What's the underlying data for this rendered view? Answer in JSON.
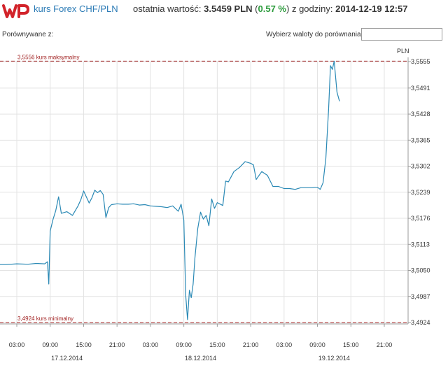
{
  "header": {
    "logo_text": "WP",
    "pair_title": "kurs Forex CHF/PLN",
    "last_value_prefix": "ostatnia wartość:",
    "last_value": "3.5459 PLN",
    "change_open": "(",
    "change": "0.57 %",
    "change_close": ")",
    "time_prefix": "z godziny:",
    "timestamp": "2014-12-19 12:57"
  },
  "toolbar": {
    "compare_label": "Porównywane z:",
    "currency_label": "Wybierz waloty do porównania",
    "currency_value": ""
  },
  "colors": {
    "line": "#2a89b5",
    "reference": "#a02020",
    "grid": "#e3e3e3",
    "brand": "#d2232a"
  },
  "chart_data": {
    "type": "line",
    "unit_label": "PLN",
    "y_ticks": [
      "3,5555",
      "3,5491",
      "3,5428",
      "3,5365",
      "3,5302",
      "3,5239",
      "3,5176",
      "3,5113",
      "3,5050",
      "3,4987",
      "3,4924"
    ],
    "y_tick_values": [
      3.5555,
      3.5491,
      3.5428,
      3.5365,
      3.5302,
      3.5239,
      3.5176,
      3.5113,
      3.505,
      3.4987,
      3.4924
    ],
    "ylim": [
      3.4924,
      3.5555
    ],
    "x_tick_labels": [
      "03:00",
      "09:00",
      "15:00",
      "21:00",
      "03:00",
      "09:00",
      "15:00",
      "21:00",
      "03:00",
      "09:00",
      "15:00",
      "21:00"
    ],
    "x_tick_times": [
      "2014-12-17 03:00",
      "2014-12-17 09:00",
      "2014-12-17 15:00",
      "2014-12-17 21:00",
      "2014-12-18 03:00",
      "2014-12-18 09:00",
      "2014-12-18 15:00",
      "2014-12-18 21:00",
      "2014-12-19 03:00",
      "2014-12-19 09:00",
      "2014-12-19 15:00",
      "2014-12-19 21:00"
    ],
    "date_labels": [
      "17.12.2014",
      "18.12.2014",
      "19.12.2014"
    ],
    "date_label_times": [
      "2014-12-17 12:00",
      "2014-12-18 12:00",
      "2014-12-19 12:00"
    ],
    "reference_lines": [
      {
        "label": "3,5556 kurs maksymalny",
        "value": 3.5556
      },
      {
        "label": "3,4924 kurs minimalny",
        "value": 3.4924
      }
    ],
    "grid": true,
    "series": [
      {
        "x": [
          "2014-12-16 22:00",
          "2014-12-17 01:00",
          "2014-12-17 03:00",
          "2014-12-17 05:00",
          "2014-12-17 06:30",
          "2014-12-17 08:00",
          "2014-12-17 08:30",
          "2014-12-17 08:45",
          "2014-12-17 09:00",
          "2014-12-17 09:30",
          "2014-12-17 10:00",
          "2014-12-17 10:30",
          "2014-12-17 11:00",
          "2014-12-17 12:00",
          "2014-12-17 13:00",
          "2014-12-17 14:00",
          "2014-12-17 14:30",
          "2014-12-17 15:00",
          "2014-12-17 16:00",
          "2014-12-17 16:30",
          "2014-12-17 17:00",
          "2014-12-17 17:30",
          "2014-12-17 18:00",
          "2014-12-17 18:30",
          "2014-12-17 19:00",
          "2014-12-17 19:30",
          "2014-12-17 20:00",
          "2014-12-17 21:00",
          "2014-12-17 22:00",
          "2014-12-17 23:00",
          "2014-12-18 00:00",
          "2014-12-18 01:00",
          "2014-12-18 02:00",
          "2014-12-18 03:00",
          "2014-12-18 04:00",
          "2014-12-18 05:00",
          "2014-12-18 06:00",
          "2014-12-18 07:00",
          "2014-12-18 08:00",
          "2014-12-18 08:30",
          "2014-12-18 09:00",
          "2014-12-18 09:20",
          "2014-12-18 09:40",
          "2014-12-18 10:00",
          "2014-12-18 10:20",
          "2014-12-18 10:40",
          "2014-12-18 11:00",
          "2014-12-18 11:30",
          "2014-12-18 12:00",
          "2014-12-18 12:30",
          "2014-12-18 13:00",
          "2014-12-18 13:30",
          "2014-12-18 14:00",
          "2014-12-18 14:30",
          "2014-12-18 15:00",
          "2014-12-18 16:00",
          "2014-12-18 16:30",
          "2014-12-18 17:00",
          "2014-12-18 18:00",
          "2014-12-18 19:00",
          "2014-12-18 20:00",
          "2014-12-18 21:00",
          "2014-12-18 21:30",
          "2014-12-18 22:00",
          "2014-12-18 23:00",
          "2014-12-19 00:00",
          "2014-12-19 01:00",
          "2014-12-19 02:00",
          "2014-12-19 03:00",
          "2014-12-19 04:00",
          "2014-12-19 05:00",
          "2014-12-19 06:00",
          "2014-12-19 07:00",
          "2014-12-19 08:00",
          "2014-12-19 08:30",
          "2014-12-19 09:00",
          "2014-12-19 09:30",
          "2014-12-19 10:00",
          "2014-12-19 10:30",
          "2014-12-19 11:00",
          "2014-12-19 11:20",
          "2014-12-19 11:40",
          "2014-12-19 12:00",
          "2014-12-19 12:30",
          "2014-12-19 12:57"
        ],
        "y": [
          3.5064,
          3.5064,
          3.5066,
          3.5065,
          3.5067,
          3.5066,
          3.5071,
          3.5017,
          3.5145,
          3.5173,
          3.5195,
          3.5228,
          3.5188,
          3.5192,
          3.5183,
          3.5206,
          3.5221,
          3.5242,
          3.5213,
          3.5226,
          3.5244,
          3.5238,
          3.5243,
          3.5234,
          3.5178,
          3.5202,
          3.5209,
          3.5211,
          3.521,
          3.521,
          3.5211,
          3.5208,
          3.5209,
          3.5206,
          3.5205,
          3.5204,
          3.5202,
          3.5206,
          3.5193,
          3.521,
          3.5172,
          3.499,
          3.4931,
          3.5002,
          3.4984,
          3.5017,
          3.5081,
          3.5151,
          3.5191,
          3.5174,
          3.5183,
          3.5158,
          3.5223,
          3.52,
          3.5214,
          3.5207,
          3.5266,
          3.5264,
          3.5289,
          3.5299,
          3.5313,
          3.5309,
          3.5305,
          3.527,
          3.5289,
          3.528,
          3.5253,
          3.5253,
          3.5248,
          3.5248,
          3.5246,
          3.525,
          3.525,
          3.525,
          3.5251,
          3.5251,
          3.5246,
          3.5262,
          3.5321,
          3.5442,
          3.5545,
          3.5536,
          3.5556,
          3.5481,
          3.5459
        ]
      }
    ]
  }
}
